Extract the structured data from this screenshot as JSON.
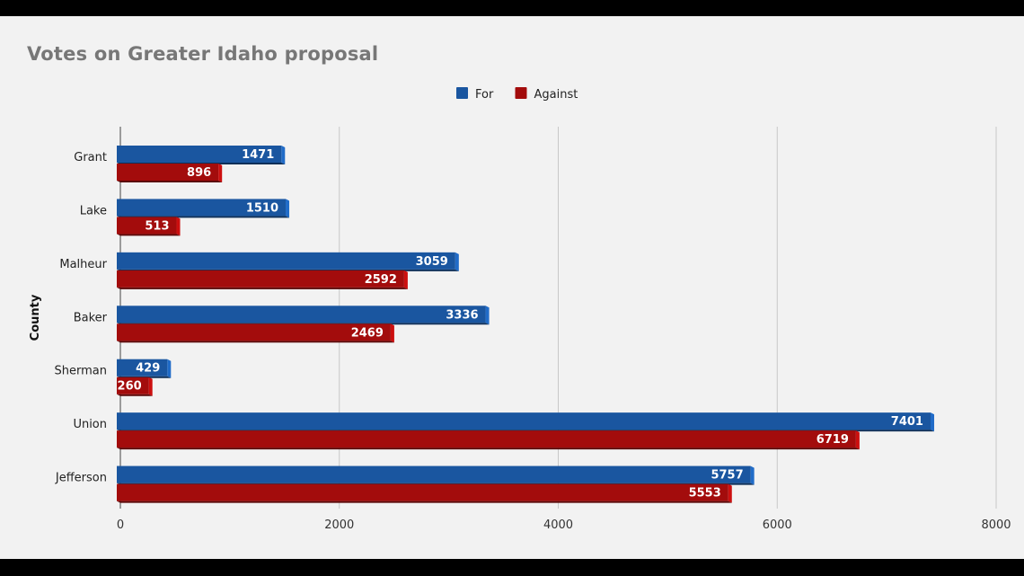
{
  "chart_data": {
    "type": "bar",
    "orientation": "horizontal",
    "title": "Votes on Greater Idaho proposal",
    "ylabel": "County",
    "categories": [
      "Grant",
      "Lake",
      "Malheur",
      "Baker",
      "Sherman",
      "Union",
      "Jefferson"
    ],
    "series": [
      {
        "name": "For",
        "color": "#1a56a0",
        "values": [
          1471,
          1510,
          3059,
          3336,
          429,
          7401,
          5757
        ]
      },
      {
        "name": "Against",
        "color": "#a30c0c",
        "values": [
          896,
          513,
          2592,
          2469,
          260,
          6719,
          5553
        ]
      }
    ],
    "xlim": [
      0,
      8000
    ],
    "xticks": [
      "0",
      "2000",
      "4000",
      "6000",
      "8000"
    ],
    "grid": true,
    "legend": "top-center"
  }
}
